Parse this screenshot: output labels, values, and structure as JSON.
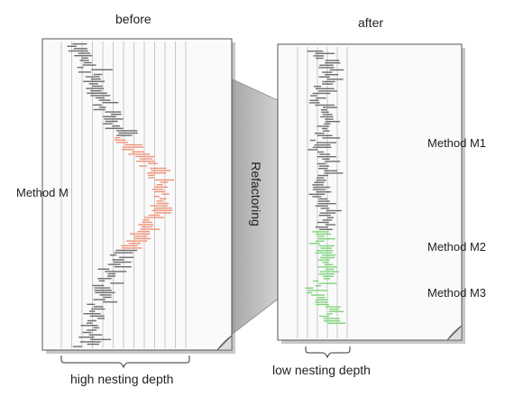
{
  "before": {
    "title": "before",
    "method_label": "Method M",
    "depth_label": "high nesting depth"
  },
  "after": {
    "title": "after",
    "method_labels": [
      "Method M1",
      "Method M2",
      "Method M3"
    ],
    "depth_label": "low nesting depth"
  },
  "transition_label": "Refactoring",
  "colors": {
    "code_dark": "#6e6e6e",
    "code_highlight_red": "#f0937a",
    "code_highlight_green": "#7ed47a",
    "page_shadow": "#bdbdbd",
    "guide_line": "#c8c8c8"
  }
}
